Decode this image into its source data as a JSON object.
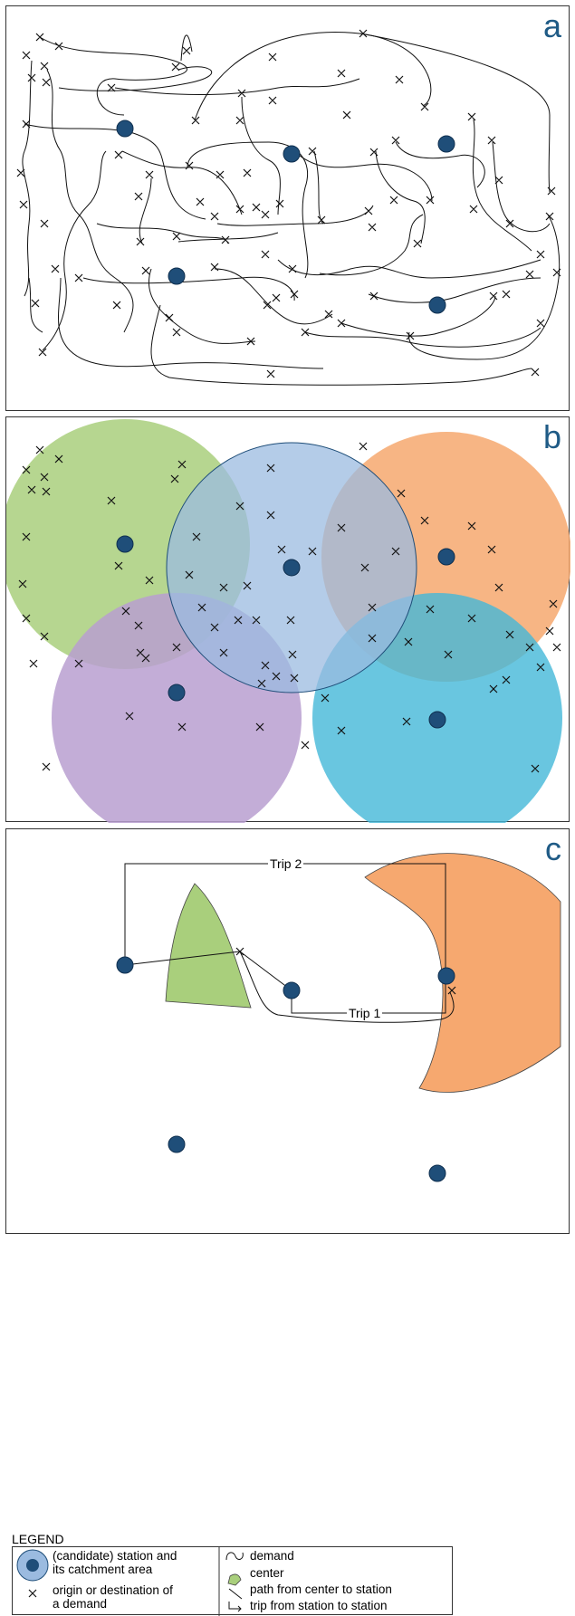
{
  "panels": [
    {
      "label": "a"
    },
    {
      "label": "b"
    },
    {
      "label": "c"
    }
  ],
  "panel_c": {
    "trip1_label": "Trip 1",
    "trip2_label": "Trip 2"
  },
  "legend": {
    "title": "LEGEND",
    "station_label_line1": "(candidate) station and",
    "station_label_line2": "its catchment area",
    "od_label_line1": "origin or destination of",
    "od_label_line2": "a demand",
    "demand_label": "demand",
    "center_label": "center",
    "path_label": "path from center to station",
    "trip_label": "trip from station to station"
  },
  "colors": {
    "station": "#1f4e79",
    "green": "#a9cf7c",
    "blue": "#9bbbe0",
    "orange": "#f6a86f",
    "purple": "#b89fd0",
    "cyan": "#44b8d8",
    "label": "#1f5b86"
  }
}
